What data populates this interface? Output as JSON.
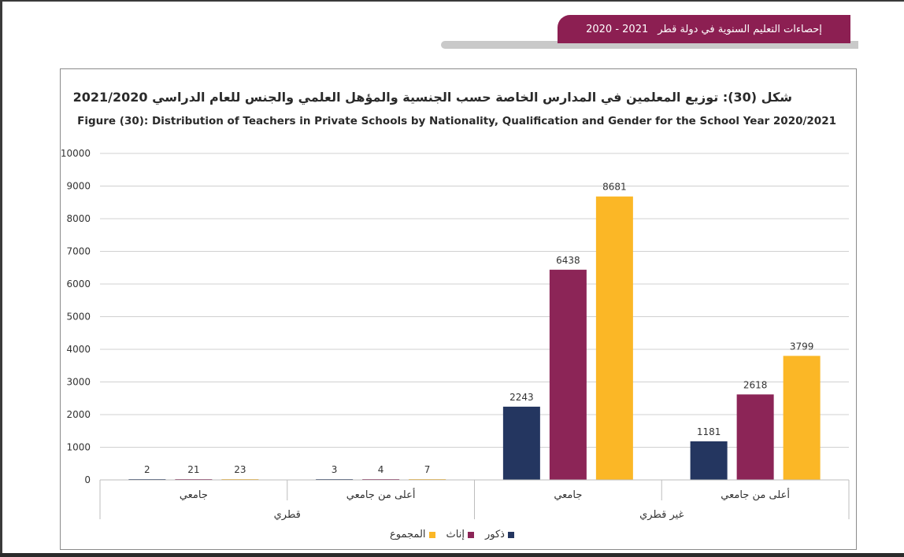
{
  "header": {
    "title": "إحصاءات التعليم السنوية في دولة قطر",
    "years": "2020 - 2021"
  },
  "chart_data": {
    "type": "bar",
    "title_ar": "شكل (30): توزيع المعلمين في المدارس الخاصة حسب الجنسية والمؤهل العلمي والجنس للعام الدراسي 2021/2020",
    "title": "Figure (30): Distribution of Teachers in Private Schools by Nationality,  Qualification and Gender for the School Year 2020/2021",
    "categories": [
      "جامعي",
      "أعلى من جامعي",
      "جامعي",
      "أعلى من جامعي"
    ],
    "groups": [
      {
        "label": "قطري",
        "categories": [
          0,
          1
        ]
      },
      {
        "label": "غير قطري",
        "categories": [
          2,
          3
        ]
      }
    ],
    "series": [
      {
        "name": "ذكور",
        "color": "#243660",
        "values": [
          2,
          3,
          2243,
          1181
        ]
      },
      {
        "name": "إناث",
        "color": "#8c2557",
        "values": [
          21,
          4,
          6438,
          2618
        ]
      },
      {
        "name": "المجموع",
        "color": "#fbb726",
        "values": [
          23,
          7,
          8681,
          3799
        ]
      }
    ],
    "ylim": [
      0,
      10000
    ],
    "yticks": [
      0,
      1000,
      2000,
      3000,
      4000,
      5000,
      6000,
      7000,
      8000,
      9000,
      10000
    ],
    "grid": true,
    "legend": "bottom-center"
  }
}
